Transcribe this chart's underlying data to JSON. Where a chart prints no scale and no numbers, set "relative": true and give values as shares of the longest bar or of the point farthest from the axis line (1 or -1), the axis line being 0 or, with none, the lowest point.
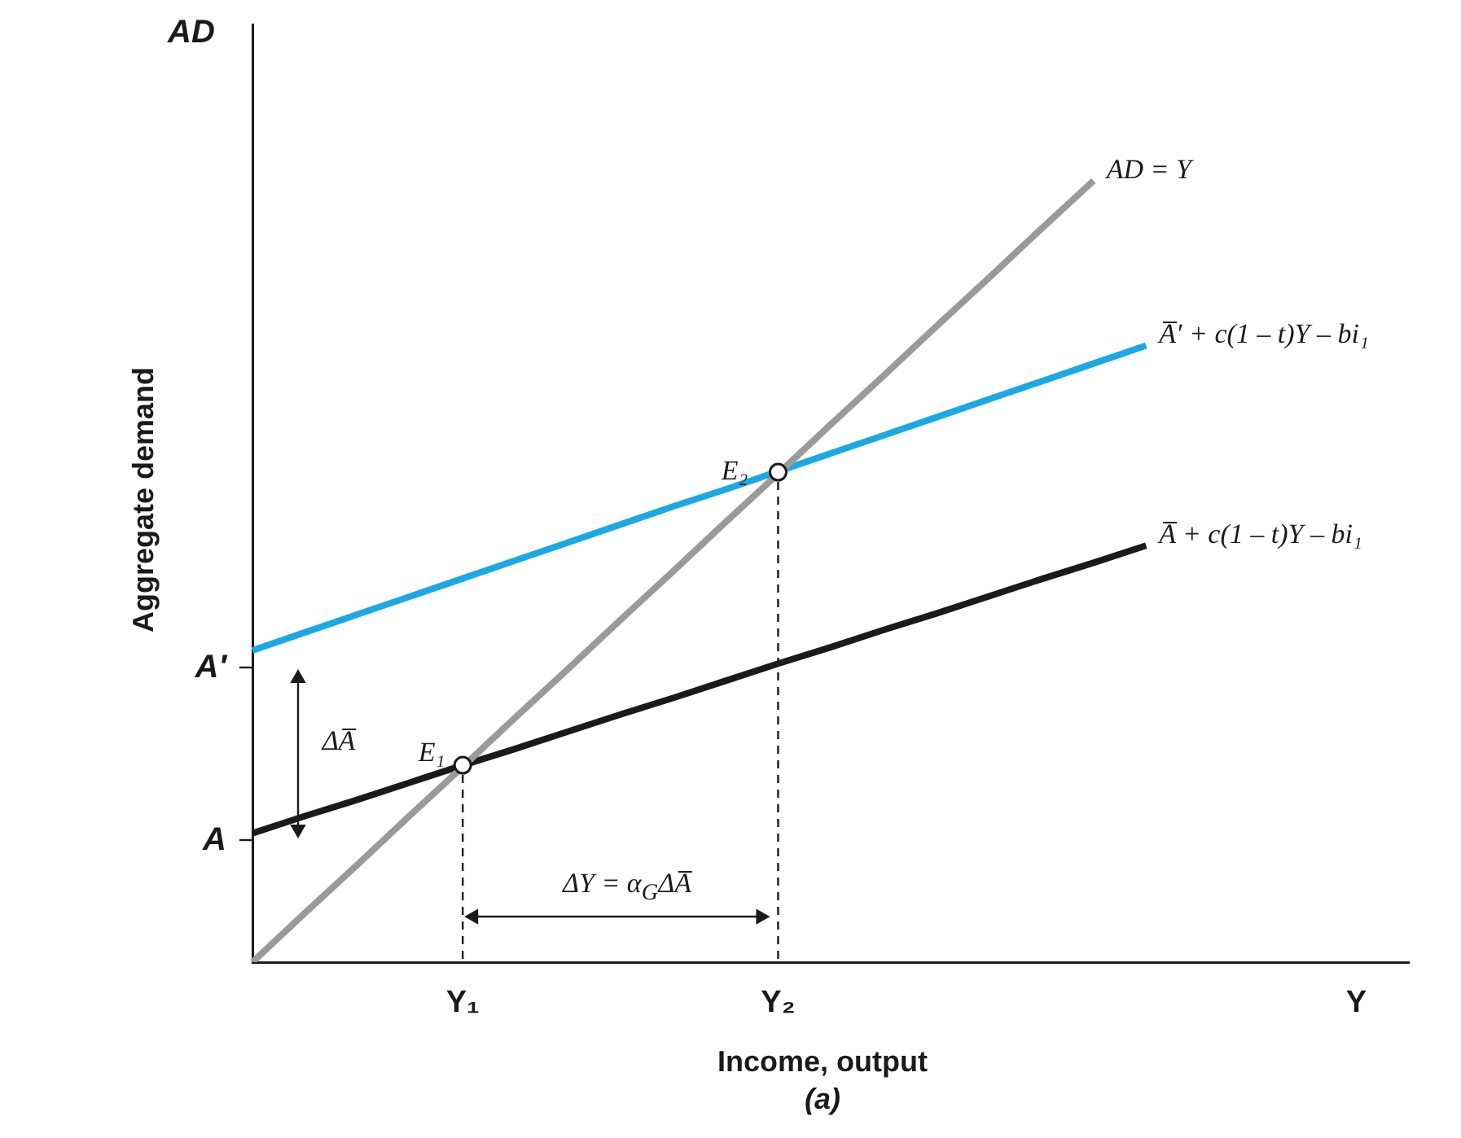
{
  "chart_data": {
    "type": "line",
    "relative": true,
    "grid": false,
    "legend": false,
    "xlabel": "Income, output",
    "ylabel": "Aggregate demand",
    "categories": [
      null,
      null,
      null,
      null,
      "Y₁",
      null,
      null,
      null,
      null,
      null,
      "Y₂",
      null,
      null,
      null,
      null,
      null,
      null,
      null,
      null,
      null,
      null,
      "Y",
      null
    ],
    "annotations": [
      "A",
      "A′",
      "E₁",
      "E₂",
      "ΔA̅",
      "ΔY = α$_{G}$ΔA̅",
      "AD",
      "(a)"
    ],
    "series": [
      {
        "name": "AD = Y",
        "color": "#9a9a9a",
        "marker": "none",
        "line_style": "solid",
        "values": [
          0,
          0.063,
          0.125,
          0.188,
          0.25,
          0.313,
          0.375,
          0.438,
          0.5,
          0.563,
          0.625,
          0.688,
          0.75,
          0.813,
          0.875,
          0.938,
          1,
          null,
          null,
          null,
          null,
          null,
          null
        ]
      },
      {
        "name": "A̅′ + c(1 – t)Y – bi₁",
        "color": "#1ba9e6",
        "marker": "none",
        "line_style": "solid",
        "values": [
          0.399,
          0.422,
          0.445,
          0.468,
          0.491,
          0.514,
          0.537,
          0.56,
          0.583,
          0.605,
          0.628,
          0.651,
          0.674,
          0.697,
          0.72,
          0.743,
          0.766,
          0.789,
          null,
          null,
          null,
          null,
          null
        ]
      },
      {
        "name": "A̅ + c(1 – t)Y – bi₁",
        "color": "#1a1a1a",
        "marker": "none",
        "line_style": "solid",
        "values": [
          0.165,
          0.187,
          0.208,
          0.23,
          0.252,
          0.273,
          0.295,
          0.317,
          0.338,
          0.36,
          0.382,
          0.403,
          0.425,
          0.446,
          0.468,
          0.49,
          0.511,
          0.533,
          null,
          null,
          null,
          null,
          null
        ]
      },
      {
        "type": "scatter",
        "color": "#1a1a1a",
        "marker": "circle",
        "values": [
          null,
          null,
          null,
          null,
          0.252,
          null,
          null,
          null,
          null,
          null,
          0.627,
          null,
          null,
          null,
          null,
          null,
          null,
          null,
          null,
          null,
          null,
          null,
          null
        ]
      }
    ]
  }
}
